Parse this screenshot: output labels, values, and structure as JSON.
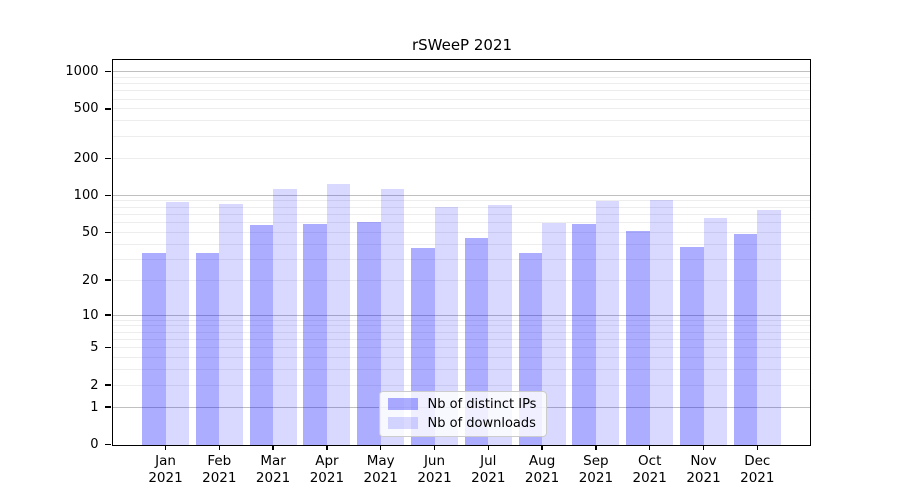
{
  "title": "rSWeeP 2021",
  "chart_data": {
    "type": "bar",
    "title": "rSWeeP 2021",
    "categories": [
      "Jan 2021",
      "Feb 2021",
      "Mar 2021",
      "Apr 2021",
      "May 2021",
      "Jun 2021",
      "Jul 2021",
      "Aug 2021",
      "Sep 2021",
      "Oct 2021",
      "Nov 2021",
      "Dec 2021"
    ],
    "series": [
      {
        "name": "Nb of distinct IPs",
        "color": "#0000ff52",
        "values": [
          34,
          34,
          57,
          58,
          61,
          37,
          45,
          34,
          58,
          51,
          38,
          48
        ]
      },
      {
        "name": "Nb of downloads",
        "color": "#0000ff26",
        "values": [
          89,
          85,
          112,
          123,
          112,
          80,
          83,
          60,
          90,
          91,
          65,
          76
        ]
      }
    ],
    "yscale": "log1p",
    "ylim": [
      0,
      1250
    ],
    "y_tick_values": [
      1000,
      500,
      200,
      100,
      50,
      20,
      10,
      5,
      2,
      1,
      0
    ],
    "gridlines_major": [
      1,
      10,
      100,
      1000
    ],
    "gridlines_minor": [
      2,
      3,
      4,
      5,
      6,
      7,
      8,
      9,
      20,
      30,
      40,
      50,
      60,
      70,
      80,
      90,
      200,
      300,
      400,
      500,
      600,
      700,
      800,
      900
    ],
    "legend_position": "lower-center",
    "grid": "on",
    "colors": {
      "grid_major": "#c0c0c0",
      "grid_minor": "#ededed",
      "spine": "#000000",
      "text": "#000000"
    }
  }
}
